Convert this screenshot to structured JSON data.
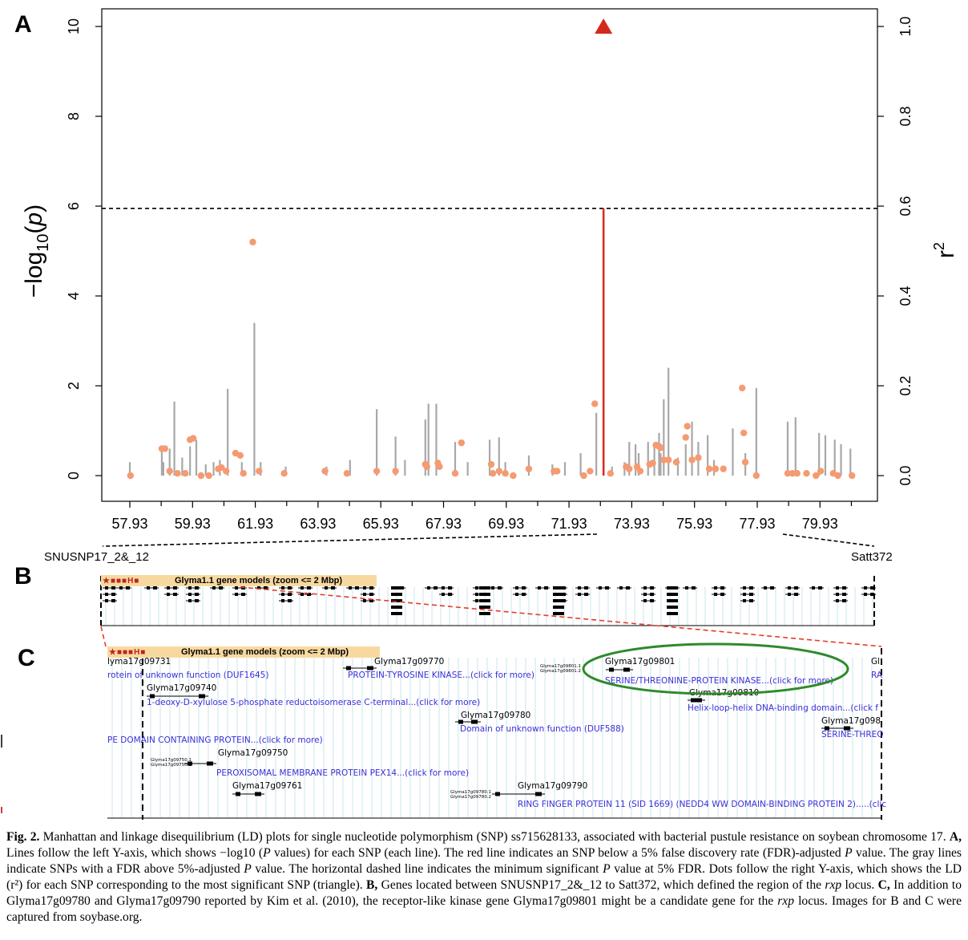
{
  "panels": {
    "a": "A",
    "b": "B",
    "c": "C"
  },
  "chart_data": {
    "type": "scatter",
    "title": "",
    "ylabel_left": "−log10(p)",
    "ylabel_right": "r2",
    "yticks_left": [
      "0",
      "2",
      "4",
      "6",
      "8",
      "10"
    ],
    "yticks_right": [
      "0.0",
      "0.2",
      "0.4",
      "0.6",
      "0.8",
      "1.0"
    ],
    "xticks": [
      "57.93",
      "59.93",
      "61.93",
      "63.93",
      "65.93",
      "67.93",
      "69.93",
      "71.93",
      "73.93",
      "75.93",
      "77.93",
      "79.93"
    ],
    "xlim": [
      57.0,
      80.9
    ],
    "ylim_left": [
      0,
      10.8
    ],
    "ylim_right": [
      0,
      1.08
    ],
    "fdr_threshold": 5.95,
    "lead_snp": {
      "x": 73.03,
      "neglog10p": 5.95,
      "r2": 1.0,
      "color": "#d42a1b"
    },
    "snp_lines": [
      [
        57.93,
        0.3
      ],
      [
        58.95,
        0.6
      ],
      [
        59.0,
        0.3
      ],
      [
        59.2,
        0.6
      ],
      [
        59.35,
        1.65
      ],
      [
        59.6,
        0.4
      ],
      [
        59.85,
        0.65
      ],
      [
        60.05,
        0.8
      ],
      [
        60.35,
        0.25
      ],
      [
        60.6,
        0.3
      ],
      [
        60.8,
        0.35
      ],
      [
        61.05,
        1.93
      ],
      [
        61.5,
        0.3
      ],
      [
        61.9,
        3.4
      ],
      [
        62.1,
        0.3
      ],
      [
        62.9,
        0.2
      ],
      [
        64.2,
        0.2
      ],
      [
        64.95,
        0.35
      ],
      [
        65.8,
        1.48
      ],
      [
        66.4,
        0.87
      ],
      [
        66.7,
        0.35
      ],
      [
        67.35,
        1.25
      ],
      [
        67.45,
        1.6
      ],
      [
        67.7,
        1.6
      ],
      [
        68.3,
        0.75
      ],
      [
        68.7,
        0.3
      ],
      [
        69.4,
        0.8
      ],
      [
        69.7,
        0.85
      ],
      [
        69.9,
        0.3
      ],
      [
        70.65,
        0.45
      ],
      [
        71.4,
        0.25
      ],
      [
        71.8,
        0.3
      ],
      [
        72.3,
        0.5
      ],
      [
        72.8,
        1.4
      ],
      [
        73.3,
        0.2
      ],
      [
        73.7,
        0.3
      ],
      [
        73.85,
        0.75
      ],
      [
        74.05,
        0.7
      ],
      [
        74.15,
        0.5
      ],
      [
        74.45,
        0.75
      ],
      [
        74.65,
        0.7
      ],
      [
        74.8,
        0.95
      ],
      [
        74.85,
        0.5
      ],
      [
        74.95,
        1.7
      ],
      [
        75.1,
        2.4
      ],
      [
        75.4,
        0.4
      ],
      [
        75.65,
        0.7
      ],
      [
        75.85,
        1.2
      ],
      [
        76.05,
        0.75
      ],
      [
        76.35,
        0.9
      ],
      [
        76.55,
        0.35
      ],
      [
        77.15,
        1.05
      ],
      [
        77.55,
        0.5
      ],
      [
        77.9,
        1.95
      ],
      [
        78.9,
        1.2
      ],
      [
        79.15,
        1.3
      ],
      [
        79.9,
        0.95
      ],
      [
        80.1,
        0.9
      ],
      [
        80.4,
        0.8
      ],
      [
        80.6,
        0.7
      ],
      [
        80.9,
        0.6
      ]
    ],
    "ld_points": [
      [
        57.95,
        0.0
      ],
      [
        58.95,
        0.06
      ],
      [
        59.05,
        0.06
      ],
      [
        59.2,
        0.01
      ],
      [
        59.45,
        0.005
      ],
      [
        59.7,
        0.005
      ],
      [
        59.85,
        0.08
      ],
      [
        59.95,
        0.083
      ],
      [
        60.2,
        0.0
      ],
      [
        60.45,
        0.0
      ],
      [
        60.75,
        0.015
      ],
      [
        60.85,
        0.018
      ],
      [
        61.0,
        0.01
      ],
      [
        61.3,
        0.05
      ],
      [
        61.45,
        0.045
      ],
      [
        61.55,
        0.005
      ],
      [
        61.85,
        0.52
      ],
      [
        62.05,
        0.01
      ],
      [
        62.85,
        0.005
      ],
      [
        64.15,
        0.01
      ],
      [
        64.85,
        0.005
      ],
      [
        65.8,
        0.01
      ],
      [
        66.4,
        0.01
      ],
      [
        67.35,
        0.025
      ],
      [
        67.4,
        0.02
      ],
      [
        67.75,
        0.028
      ],
      [
        67.8,
        0.02
      ],
      [
        68.3,
        0.005
      ],
      [
        68.5,
        0.073
      ],
      [
        69.45,
        0.025
      ],
      [
        69.5,
        0.005
      ],
      [
        69.7,
        0.01
      ],
      [
        69.9,
        0.005
      ],
      [
        70.15,
        0.0
      ],
      [
        70.65,
        0.015
      ],
      [
        71.45,
        0.01
      ],
      [
        71.55,
        0.01
      ],
      [
        72.4,
        0.0
      ],
      [
        72.6,
        0.01
      ],
      [
        72.75,
        0.16
      ],
      [
        73.25,
        0.005
      ],
      [
        73.75,
        0.02
      ],
      [
        73.85,
        0.015
      ],
      [
        74.1,
        0.02
      ],
      [
        74.2,
        0.01
      ],
      [
        74.5,
        0.025
      ],
      [
        74.6,
        0.028
      ],
      [
        74.7,
        0.068
      ],
      [
        74.8,
        0.065
      ],
      [
        74.85,
        0.062
      ],
      [
        74.95,
        0.035
      ],
      [
        75.1,
        0.035
      ],
      [
        75.35,
        0.03
      ],
      [
        75.65,
        0.085
      ],
      [
        75.7,
        0.11
      ],
      [
        75.85,
        0.035
      ],
      [
        76.05,
        0.04
      ],
      [
        76.4,
        0.015
      ],
      [
        76.6,
        0.015
      ],
      [
        76.85,
        0.015
      ],
      [
        77.45,
        0.195
      ],
      [
        77.5,
        0.095
      ],
      [
        77.55,
        0.03
      ],
      [
        77.9,
        0.0
      ],
      [
        78.9,
        0.005
      ],
      [
        79.05,
        0.005
      ],
      [
        79.2,
        0.005
      ],
      [
        79.5,
        0.005
      ],
      [
        79.8,
        0.0
      ],
      [
        79.95,
        0.01
      ],
      [
        80.35,
        0.005
      ],
      [
        80.5,
        0.0
      ],
      [
        80.95,
        0.0
      ]
    ],
    "grid": false
  },
  "locus": {
    "left_marker": "SNUSNP17_2&_12",
    "right_marker": "Satt372"
  },
  "track_b": {
    "title": "Glyma1.1 gene models (zoom <= 2 Mbp)"
  },
  "track_c": {
    "title": "Glyma1.1 gene models (zoom <= 2 Mbp)",
    "genes": [
      {
        "id": "lyma17g09731",
        "desc": "rotein of unknown function (DUF1645)"
      },
      {
        "id": "Glyma17g09740",
        "desc": "1-deoxy-D-xylulose 5-phosphate reductoisomerase C-terminal...(click for more)"
      },
      {
        "id": "",
        "desc": "PE DOMAIN CONTAINING PROTEIN...(click for more)"
      },
      {
        "id": "Glyma17g09750",
        "desc": "PEROXISOMAL MEMBRANE PROTEIN PEX14...(click for more)"
      },
      {
        "id": "Glyma17g09761",
        "desc": ""
      },
      {
        "id": "Glyma17g09770",
        "desc": "PROTEIN-TYROSINE KINASE...(click for more)"
      },
      {
        "id": "Glyma17g09780",
        "desc": "Domain of unknown function (DUF588)"
      },
      {
        "id": "Glyma17g09790",
        "desc": "RING FINGER PROTEIN 11 (SID 1669) (NEDD4 WW DOMAIN-BINDING PROTEIN 2).....(clic"
      },
      {
        "id": "Glyma17g09801",
        "desc": "SERINE/THREONINE-PROTEIN KINASE...(click for more)"
      },
      {
        "id": "Glyma17g09810",
        "desc": "Helix-loop-helix DNA-binding domain...(click f"
      },
      {
        "id": "Glyma17g098",
        "desc": "SERINE-THREO"
      },
      {
        "id": "Gl",
        "desc": "RA"
      }
    ],
    "small_labels": [
      "Glyma17g09750.1",
      "Glyma17g09750.2",
      "Glyma17g09780.1",
      "Glyma17g09780.2",
      "Glyma17g09801.1",
      "Glyma17g09801.2"
    ]
  },
  "colors": {
    "lead": "#d42a1b",
    "snp_line": "#a8a8a8",
    "ld_dot": "#f59a72",
    "highlight_ellipse": "#2f8a2c",
    "gene_desc": "#3a2ed6"
  },
  "caption": {
    "p1_bold": "Fig. 2.",
    "p1": " Manhattan and linkage disequilibrium (LD) plots for single nucleotide polymorphism (SNP) ss715628133, associated with bacterial pustule resistance on soybean chromosome 17. ",
    "a_bold": "A,",
    "a1": " Lines follow the left Y-axis, which shows −log10 (",
    "a_i1": "P",
    "a2": " values) for each SNP (each line). The red line indicates an SNP below a 5% false discovery rate (FDR)-adjusted ",
    "a_i2": "P",
    "a3": " value. The gray lines indicate SNPs with a FDR above 5%-adjusted ",
    "a_i3": "P",
    "a4": " value. The horizontal dashed line indicates the minimum significant ",
    "a_i4": "P",
    "a5": " value at 5% FDR. Dots follow the right Y-axis, which shows the LD (r²) for each SNP corresponding to the most significant SNP (triangle). ",
    "b_bold": "B,",
    "b1": " Genes located between SNUSNP17_2&_12 to Satt372, which defined the region of the ",
    "b_i": "rxp",
    "b2": " locus. ",
    "c_bold": "C,",
    "c1": " In addition to Glyma17g09780 and Glyma17g09790 reported by Kim et al. (2010), the receptor-like kinase gene Glyma17g09801 might be a candidate gene for the ",
    "c_i": "rxp",
    "c2": " locus. Images for B and C were captured from soybase.org."
  }
}
